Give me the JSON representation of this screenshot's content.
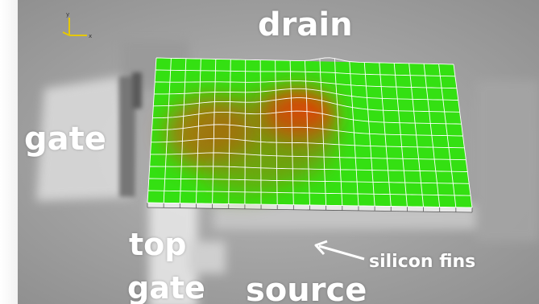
{
  "labels": {
    "drain": "drain",
    "gate": "gate",
    "top": "top",
    "top_gate": "gate",
    "source": "source",
    "silicon_fins": "silicon fins"
  },
  "axis_triad": {
    "y": "y",
    "x": "x"
  },
  "colors": {
    "surface_low": "#33e010",
    "surface_high": "#ff2a00",
    "grid_line": "#ffffff",
    "background": "#a9a9a9",
    "label": "#ffffff"
  }
}
